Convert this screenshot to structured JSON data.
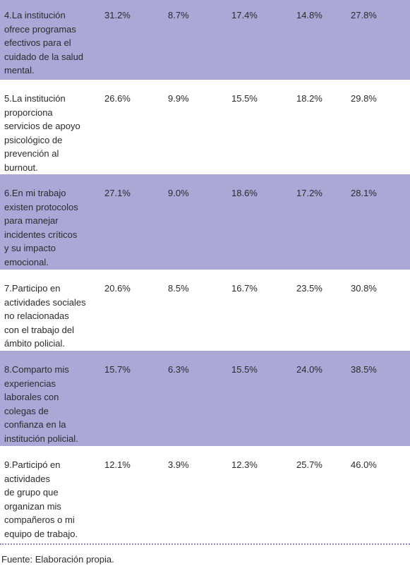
{
  "table": {
    "rows": [
      {
        "label": [
          "4.La institución",
          "ofrece programas",
          "efectivos para el",
          "cuidado de la salud",
          "mental."
        ],
        "values": [
          "31.2%",
          "8.7%",
          "17.4%",
          "14.8%",
          "27.8%"
        ]
      },
      {
        "label": [
          "5.La institución",
          "proporciona",
          "servicios de apoyo",
          "psicológico de",
          "prevención al",
          "burnout."
        ],
        "values": [
          "26.6%",
          "9.9%",
          "15.5%",
          "18.2%",
          "29.8%"
        ]
      },
      {
        "label": [
          "6.En mi trabajo",
          "existen protocolos",
          "para manejar",
          "incidentes críticos",
          "y su impacto",
          "emocional."
        ],
        "values": [
          "27.1%",
          "9.0%",
          "18.6%",
          "17.2%",
          "28.1%"
        ]
      },
      {
        "label": [
          "7.Participo en",
          "actividades sociales",
          "no relacionadas",
          "con el trabajo del",
          "ámbito policial."
        ],
        "values": [
          "20.6%",
          "8.5%",
          "16.7%",
          "23.5%",
          "30.8%"
        ]
      },
      {
        "label": [
          "8.Comparto mis",
          "experiencias",
          "laborales con",
          "colegas de",
          "confianza en la",
          "institución policial."
        ],
        "values": [
          "15.7%",
          "6.3%",
          "15.5%",
          "24.0%",
          "38.5%"
        ]
      },
      {
        "label": [
          "9.Participó en",
          "actividades",
          "de grupo que",
          "organizan mis",
          "compañeros o mi",
          "equipo de trabajo."
        ],
        "values": [
          "12.1%",
          "3.9%",
          "12.3%",
          "25.7%",
          "46.0%"
        ]
      }
    ]
  },
  "footer": {
    "source": "Fuente: Elaboración propia."
  }
}
